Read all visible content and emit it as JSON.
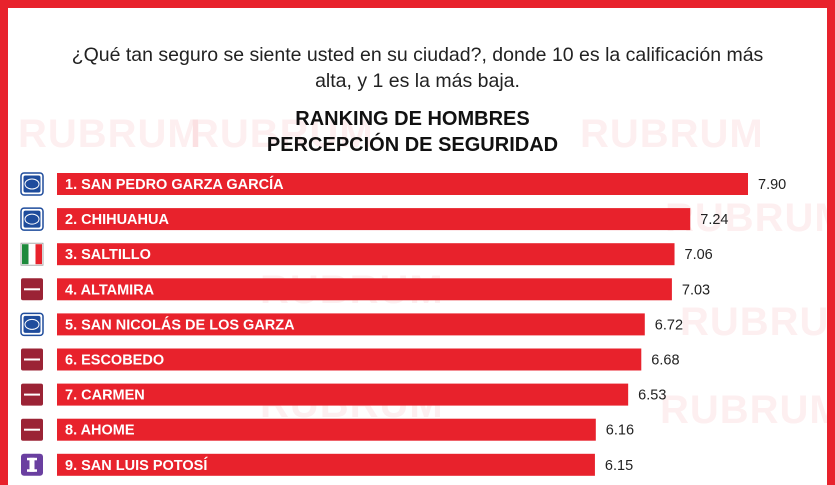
{
  "question": "¿Qué tan seguro se siente usted en su ciudad?, donde 10 es la calificación más alta, y  1 es la más baja.",
  "title_line1": "RANKING DE HOMBRES",
  "title_line2": "PERCEPCIÓN DE SEGURIDAD",
  "watermark_text": "RUBRUM",
  "colors": {
    "bar": "#e8222c",
    "frame": "#e8222c",
    "pan": "#1f4c9c",
    "pri_green": "#1e8a3c",
    "morena": "#9b2335",
    "independent": "#6a3fa0"
  },
  "chart_data": {
    "type": "bar",
    "orientation": "horizontal",
    "title": "RANKING DE HOMBRES PERCEPCIÓN DE SEGURIDAD",
    "categories": [
      "1. SAN PEDRO GARZA GARCÍA",
      "2. CHIHUAHUA",
      "3. SALTILLO",
      "4. ALTAMIRA",
      "5. SAN NICOLÁS DE LOS GARZA",
      "6. ESCOBEDO",
      "7. CARMEN",
      "8. AHOME",
      "9. SAN LUIS POTOSÍ"
    ],
    "values": [
      7.9,
      7.24,
      7.06,
      7.03,
      6.72,
      6.68,
      6.53,
      6.16,
      6.15
    ],
    "value_labels": [
      "7.90",
      "7.24",
      "7.06",
      "7.03",
      "6.72",
      "6.68",
      "6.53",
      "6.16",
      "6.15"
    ],
    "parties": [
      "PAN",
      "PAN",
      "PRI",
      "morena",
      "PAN",
      "morena",
      "morena",
      "morena",
      "I"
    ],
    "xlim": [
      0,
      7.9
    ],
    "grid": false,
    "legend": "none"
  }
}
